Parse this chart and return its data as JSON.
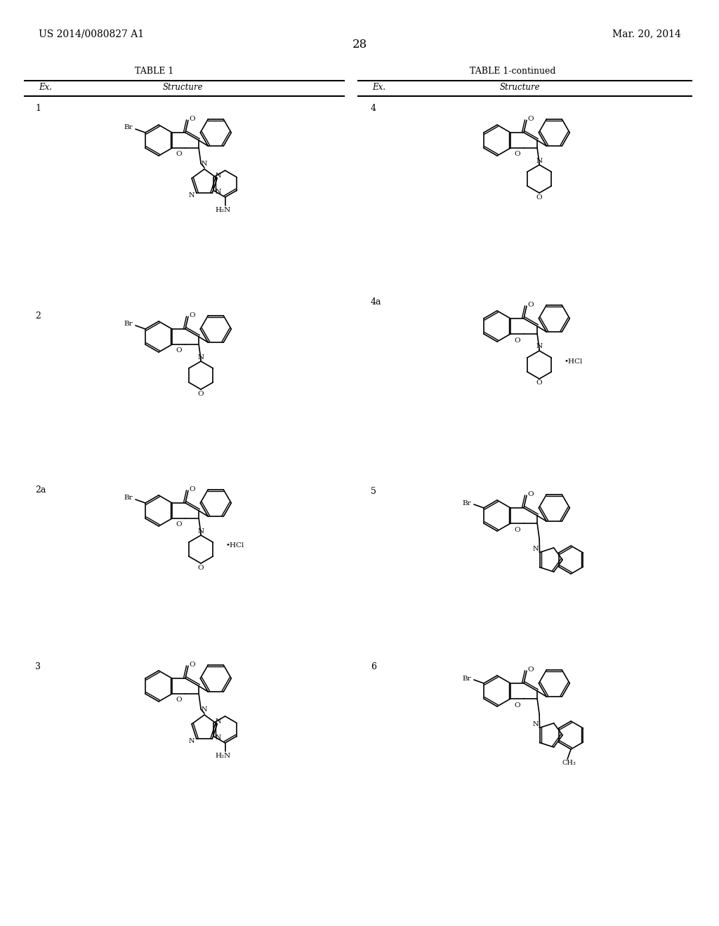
{
  "page_left_text": "US 2014/0080827 A1",
  "page_right_text": "Mar. 20, 2014",
  "page_number": "28",
  "left_table_title": "TABLE 1",
  "right_table_title": "TABLE 1-continued",
  "col_header_ex": "Ex.",
  "col_header_struct": "Structure",
  "background_color": "#ffffff",
  "text_color": "#000000"
}
